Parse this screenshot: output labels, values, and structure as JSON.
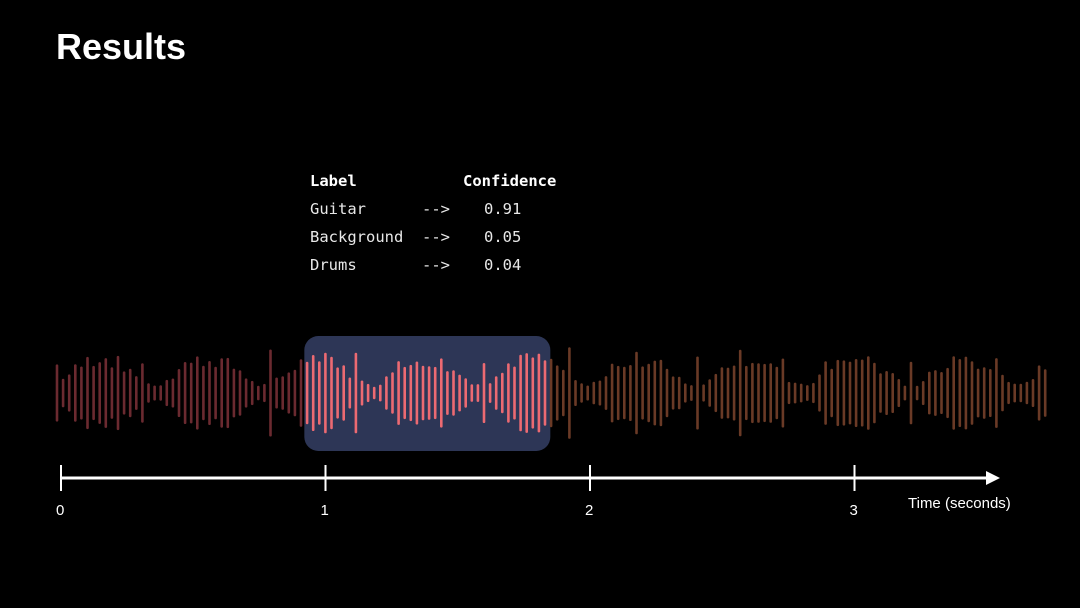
{
  "slide": {
    "title": "Results"
  },
  "results_table": {
    "headers": {
      "label": "Label",
      "confidence": "Confidence"
    },
    "rows": [
      {
        "label": "Guitar",
        "arrow": "-->",
        "confidence": "0.91"
      },
      {
        "label": "Background",
        "arrow": "-->",
        "confidence": "0.05"
      },
      {
        "label": "Drums",
        "arrow": "-->",
        "confidence": "0.04"
      }
    ]
  },
  "timeline": {
    "axis_label": "Time (seconds)",
    "ticks": [
      "0",
      "1",
      "2",
      "3"
    ],
    "highlight_window": {
      "start_seconds": 0.92,
      "end_seconds": 1.85
    }
  },
  "colors": {
    "background": "#000000",
    "highlight_box": "#2d3656",
    "waveform_left": "#6b2a30",
    "waveform_highlight": "#ec6a72",
    "waveform_right": "#6a3a26",
    "axis": "#ffffff"
  }
}
